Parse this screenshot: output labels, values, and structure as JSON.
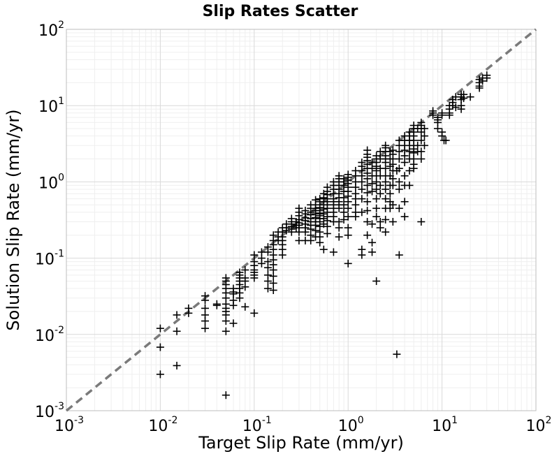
{
  "chart_data": {
    "type": "scatter",
    "title": "Slip Rates Scatter",
    "xlabel": "Target Slip Rate (mm/yr)",
    "ylabel": "Solution Slip Rate (mm/yr)",
    "xscale": "log",
    "yscale": "log",
    "xlim": [
      0.001,
      100
    ],
    "ylim": [
      0.001,
      100
    ],
    "tick_base": "10",
    "x_tick_exponents": [
      "-3",
      "-2",
      "-1",
      "0",
      "1",
      "2"
    ],
    "y_tick_exponents": [
      "-3",
      "-2",
      "-1",
      "0",
      "1",
      "2"
    ],
    "grid": true,
    "marker": "plus",
    "reference_line": {
      "style": "dashed",
      "color": "#7a7a7a",
      "from": [
        0.001,
        0.001
      ],
      "to": [
        100,
        100
      ]
    },
    "colors": {
      "markers": "#000000",
      "reference_line": "#7a7a7a",
      "grid_major": "#d9d9d9",
      "grid_minor": "#efefef"
    },
    "points": [
      [
        0.01,
        0.012
      ],
      [
        0.01,
        0.0068
      ],
      [
        0.01,
        0.003
      ],
      [
        0.015,
        0.018
      ],
      [
        0.015,
        0.011
      ],
      [
        0.015,
        0.0039
      ],
      [
        0.02,
        0.022
      ],
      [
        0.02,
        0.019
      ],
      [
        0.03,
        0.032
      ],
      [
        0.03,
        0.028
      ],
      [
        0.03,
        0.022
      ],
      [
        0.03,
        0.018
      ],
      [
        0.03,
        0.015
      ],
      [
        0.03,
        0.012
      ],
      [
        0.04,
        0.025
      ],
      [
        0.04,
        0.024
      ],
      [
        0.05,
        0.055
      ],
      [
        0.05,
        0.05
      ],
      [
        0.05,
        0.045
      ],
      [
        0.05,
        0.04
      ],
      [
        0.05,
        0.035
      ],
      [
        0.05,
        0.03
      ],
      [
        0.05,
        0.025
      ],
      [
        0.05,
        0.022
      ],
      [
        0.05,
        0.02
      ],
      [
        0.05,
        0.018
      ],
      [
        0.05,
        0.015
      ],
      [
        0.05,
        0.011
      ],
      [
        0.05,
        0.0016
      ],
      [
        0.06,
        0.04
      ],
      [
        0.06,
        0.036
      ],
      [
        0.06,
        0.034
      ],
      [
        0.06,
        0.028
      ],
      [
        0.06,
        0.024
      ],
      [
        0.06,
        0.014
      ],
      [
        0.07,
        0.065
      ],
      [
        0.07,
        0.06
      ],
      [
        0.07,
        0.055
      ],
      [
        0.07,
        0.05
      ],
      [
        0.07,
        0.045
      ],
      [
        0.07,
        0.04
      ],
      [
        0.07,
        0.035
      ],
      [
        0.07,
        0.03
      ],
      [
        0.08,
        0.07
      ],
      [
        0.08,
        0.055
      ],
      [
        0.08,
        0.05
      ],
      [
        0.08,
        0.042
      ],
      [
        0.08,
        0.023
      ],
      [
        0.1,
        0.11
      ],
      [
        0.1,
        0.09
      ],
      [
        0.1,
        0.08
      ],
      [
        0.1,
        0.07
      ],
      [
        0.1,
        0.065
      ],
      [
        0.1,
        0.06
      ],
      [
        0.1,
        0.055
      ],
      [
        0.1,
        0.019
      ],
      [
        0.12,
        0.12
      ],
      [
        0.12,
        0.1
      ],
      [
        0.12,
        0.085
      ],
      [
        0.14,
        0.14
      ],
      [
        0.14,
        0.12
      ],
      [
        0.14,
        0.09
      ],
      [
        0.14,
        0.075
      ],
      [
        0.14,
        0.06
      ],
      [
        0.14,
        0.05
      ],
      [
        0.14,
        0.04
      ],
      [
        0.16,
        0.2
      ],
      [
        0.16,
        0.17
      ],
      [
        0.16,
        0.15
      ],
      [
        0.16,
        0.13
      ],
      [
        0.16,
        0.11
      ],
      [
        0.16,
        0.095
      ],
      [
        0.16,
        0.082
      ],
      [
        0.16,
        0.07
      ],
      [
        0.16,
        0.058
      ],
      [
        0.16,
        0.047
      ],
      [
        0.16,
        0.038
      ],
      [
        0.18,
        0.22
      ],
      [
        0.18,
        0.19
      ],
      [
        0.18,
        0.17
      ],
      [
        0.2,
        0.25
      ],
      [
        0.2,
        0.22
      ],
      [
        0.2,
        0.19
      ],
      [
        0.2,
        0.17
      ],
      [
        0.2,
        0.15
      ],
      [
        0.2,
        0.13
      ],
      [
        0.2,
        0.11
      ],
      [
        0.22,
        0.28
      ],
      [
        0.22,
        0.25
      ],
      [
        0.22,
        0.23
      ],
      [
        0.25,
        0.33
      ],
      [
        0.25,
        0.3
      ],
      [
        0.25,
        0.28
      ],
      [
        0.25,
        0.26
      ],
      [
        0.25,
        0.24
      ],
      [
        0.25,
        0.22
      ],
      [
        0.28,
        0.3
      ],
      [
        0.28,
        0.27
      ],
      [
        0.28,
        0.25
      ],
      [
        0.3,
        0.45
      ],
      [
        0.3,
        0.4
      ],
      [
        0.3,
        0.36
      ],
      [
        0.3,
        0.32
      ],
      [
        0.3,
        0.29
      ],
      [
        0.3,
        0.27
      ],
      [
        0.3,
        0.25
      ],
      [
        0.3,
        0.22
      ],
      [
        0.3,
        0.17
      ],
      [
        0.35,
        0.42
      ],
      [
        0.35,
        0.38
      ],
      [
        0.35,
        0.34
      ],
      [
        0.35,
        0.31
      ],
      [
        0.35,
        0.28
      ],
      [
        0.35,
        0.25
      ],
      [
        0.35,
        0.22
      ],
      [
        0.35,
        0.17
      ],
      [
        0.4,
        0.5
      ],
      [
        0.4,
        0.45
      ],
      [
        0.4,
        0.4
      ],
      [
        0.4,
        0.37
      ],
      [
        0.4,
        0.33
      ],
      [
        0.4,
        0.3
      ],
      [
        0.4,
        0.27
      ],
      [
        0.4,
        0.24
      ],
      [
        0.4,
        0.2
      ],
      [
        0.4,
        0.17
      ],
      [
        0.45,
        0.58
      ],
      [
        0.45,
        0.5
      ],
      [
        0.45,
        0.45
      ],
      [
        0.45,
        0.42
      ],
      [
        0.45,
        0.38
      ],
      [
        0.45,
        0.34
      ],
      [
        0.45,
        0.3
      ],
      [
        0.45,
        0.27
      ],
      [
        0.45,
        0.23
      ],
      [
        0.45,
        0.19
      ],
      [
        0.5,
        0.6
      ],
      [
        0.5,
        0.55
      ],
      [
        0.5,
        0.5
      ],
      [
        0.5,
        0.46
      ],
      [
        0.5,
        0.42
      ],
      [
        0.5,
        0.39
      ],
      [
        0.5,
        0.36
      ],
      [
        0.5,
        0.33
      ],
      [
        0.5,
        0.3
      ],
      [
        0.5,
        0.26
      ],
      [
        0.5,
        0.22
      ],
      [
        0.5,
        0.19
      ],
      [
        0.5,
        0.16
      ],
      [
        0.55,
        0.7
      ],
      [
        0.55,
        0.62
      ],
      [
        0.55,
        0.55
      ],
      [
        0.55,
        0.5
      ],
      [
        0.55,
        0.44
      ],
      [
        0.55,
        0.38
      ],
      [
        0.55,
        0.33
      ],
      [
        0.55,
        0.28
      ],
      [
        0.55,
        0.13
      ],
      [
        0.6,
        0.85
      ],
      [
        0.6,
        0.75
      ],
      [
        0.6,
        0.68
      ],
      [
        0.6,
        0.6
      ],
      [
        0.6,
        0.55
      ],
      [
        0.6,
        0.5
      ],
      [
        0.6,
        0.45
      ],
      [
        0.6,
        0.4
      ],
      [
        0.6,
        0.35
      ],
      [
        0.6,
        0.31
      ],
      [
        0.6,
        0.26
      ],
      [
        0.6,
        0.21
      ],
      [
        0.7,
        1.0
      ],
      [
        0.7,
        0.9
      ],
      [
        0.7,
        0.8
      ],
      [
        0.7,
        0.7
      ],
      [
        0.7,
        0.6
      ],
      [
        0.7,
        0.55
      ],
      [
        0.7,
        0.5
      ],
      [
        0.7,
        0.45
      ],
      [
        0.7,
        0.4
      ],
      [
        0.7,
        0.35
      ],
      [
        0.7,
        0.3
      ],
      [
        0.7,
        0.12
      ],
      [
        0.8,
        1.2
      ],
      [
        0.8,
        1.1
      ],
      [
        0.8,
        1.0
      ],
      [
        0.8,
        0.9
      ],
      [
        0.8,
        0.8
      ],
      [
        0.8,
        0.7
      ],
      [
        0.8,
        0.62
      ],
      [
        0.8,
        0.55
      ],
      [
        0.8,
        0.5
      ],
      [
        0.8,
        0.45
      ],
      [
        0.8,
        0.3
      ],
      [
        0.8,
        0.25
      ],
      [
        0.8,
        0.19
      ],
      [
        0.9,
        1.1
      ],
      [
        0.9,
        1.0
      ],
      [
        0.9,
        0.9
      ],
      [
        0.9,
        0.75
      ],
      [
        0.9,
        0.62
      ],
      [
        0.9,
        0.5
      ],
      [
        0.9,
        0.4
      ],
      [
        0.9,
        0.32
      ],
      [
        1.0,
        1.25
      ],
      [
        1.0,
        1.15
      ],
      [
        1.0,
        1.05
      ],
      [
        1.0,
        0.95
      ],
      [
        1.0,
        0.85
      ],
      [
        1.0,
        0.75
      ],
      [
        1.0,
        0.65
      ],
      [
        1.0,
        0.55
      ],
      [
        1.0,
        0.45
      ],
      [
        1.0,
        0.35
      ],
      [
        1.0,
        0.25
      ],
      [
        1.0,
        0.2
      ],
      [
        1.0,
        0.085
      ],
      [
        1.2,
        1.4
      ],
      [
        1.2,
        1.2
      ],
      [
        1.2,
        1.0
      ],
      [
        1.2,
        0.85
      ],
      [
        1.2,
        0.7
      ],
      [
        1.2,
        0.6
      ],
      [
        1.2,
        0.5
      ],
      [
        1.2,
        0.4
      ],
      [
        1.2,
        0.35
      ],
      [
        1.4,
        1.8
      ],
      [
        1.4,
        1.6
      ],
      [
        1.4,
        1.4
      ],
      [
        1.4,
        1.2
      ],
      [
        1.4,
        1.0
      ],
      [
        1.4,
        0.8
      ],
      [
        1.4,
        0.6
      ],
      [
        1.4,
        0.4
      ],
      [
        1.4,
        0.13
      ],
      [
        1.4,
        0.11
      ],
      [
        1.6,
        2.6
      ],
      [
        1.6,
        2.3
      ],
      [
        1.6,
        2.1
      ],
      [
        1.6,
        1.9
      ],
      [
        1.6,
        1.7
      ],
      [
        1.6,
        1.5
      ],
      [
        1.6,
        1.3
      ],
      [
        1.6,
        1.1
      ],
      [
        1.6,
        0.9
      ],
      [
        1.6,
        0.72
      ],
      [
        1.6,
        0.55
      ],
      [
        1.6,
        0.42
      ],
      [
        1.6,
        0.3
      ],
      [
        1.6,
        0.2
      ],
      [
        1.8,
        1.8
      ],
      [
        1.8,
        1.5
      ],
      [
        1.8,
        1.2
      ],
      [
        1.8,
        0.95
      ],
      [
        1.8,
        0.75
      ],
      [
        1.8,
        0.28
      ],
      [
        1.8,
        0.16
      ],
      [
        1.8,
        0.12
      ],
      [
        2.0,
        2.2
      ],
      [
        2.0,
        2.0
      ],
      [
        2.0,
        1.8
      ],
      [
        2.0,
        1.6
      ],
      [
        2.0,
        1.4
      ],
      [
        2.0,
        1.2
      ],
      [
        2.0,
        1.0
      ],
      [
        2.0,
        0.8
      ],
      [
        2.0,
        0.6
      ],
      [
        2.0,
        0.45
      ],
      [
        2.0,
        0.35
      ],
      [
        2.0,
        0.05
      ],
      [
        2.2,
        2.5
      ],
      [
        2.2,
        2.0
      ],
      [
        2.2,
        1.5
      ],
      [
        2.2,
        1.2
      ],
      [
        2.2,
        0.9
      ],
      [
        2.2,
        0.7
      ],
      [
        2.2,
        0.3
      ],
      [
        2.2,
        0.25
      ],
      [
        2.5,
        3.0
      ],
      [
        2.5,
        2.8
      ],
      [
        2.5,
        2.5
      ],
      [
        2.5,
        2.2
      ],
      [
        2.5,
        2.0
      ],
      [
        2.5,
        1.8
      ],
      [
        2.5,
        1.5
      ],
      [
        2.5,
        1.2
      ],
      [
        2.5,
        1.0
      ],
      [
        2.5,
        0.8
      ],
      [
        2.5,
        0.6
      ],
      [
        2.5,
        0.45
      ],
      [
        2.5,
        0.32
      ],
      [
        2.5,
        0.22
      ],
      [
        2.8,
        2.5
      ],
      [
        2.8,
        2.0
      ],
      [
        2.8,
        1.6
      ],
      [
        2.8,
        1.2
      ],
      [
        2.8,
        0.9
      ],
      [
        2.8,
        0.7
      ],
      [
        2.8,
        0.55
      ],
      [
        2.8,
        0.45
      ],
      [
        3.0,
        2.6
      ],
      [
        3.0,
        2.3
      ],
      [
        3.0,
        2.0
      ],
      [
        3.0,
        1.7
      ],
      [
        3.0,
        1.4
      ],
      [
        3.0,
        1.1
      ],
      [
        3.0,
        0.9
      ],
      [
        3.0,
        0.5
      ],
      [
        3.0,
        0.3
      ],
      [
        3.3,
        1.4
      ],
      [
        3.3,
        0.0055
      ],
      [
        3.5,
        3.5
      ],
      [
        3.5,
        3.0
      ],
      [
        3.5,
        2.5
      ],
      [
        3.5,
        2.0
      ],
      [
        3.5,
        1.5
      ],
      [
        3.5,
        1.0
      ],
      [
        3.5,
        0.8
      ],
      [
        3.5,
        0.45
      ],
      [
        3.5,
        0.11
      ],
      [
        4.0,
        4.0
      ],
      [
        4.0,
        3.5
      ],
      [
        4.0,
        3.0
      ],
      [
        4.0,
        2.6
      ],
      [
        4.0,
        2.2
      ],
      [
        4.0,
        1.8
      ],
      [
        4.0,
        1.2
      ],
      [
        4.0,
        0.9
      ],
      [
        4.0,
        0.55
      ],
      [
        4.0,
        0.35
      ],
      [
        4.5,
        4.5
      ],
      [
        4.5,
        4.0
      ],
      [
        4.5,
        3.5
      ],
      [
        4.5,
        3.0
      ],
      [
        4.5,
        2.5
      ],
      [
        4.5,
        2.0
      ],
      [
        4.5,
        1.4
      ],
      [
        4.5,
        0.9
      ],
      [
        5.0,
        5.5
      ],
      [
        5.0,
        5.0
      ],
      [
        5.0,
        4.5
      ],
      [
        5.0,
        4.0
      ],
      [
        5.0,
        3.5
      ],
      [
        5.0,
        3.0
      ],
      [
        5.0,
        2.7
      ],
      [
        5.0,
        2.4
      ],
      [
        5.0,
        2.0
      ],
      [
        5.0,
        1.7
      ],
      [
        5.0,
        1.5
      ],
      [
        5.5,
        5.0
      ],
      [
        5.5,
        3.0
      ],
      [
        5.5,
        2.5
      ],
      [
        6.0,
        6.0
      ],
      [
        6.0,
        5.5
      ],
      [
        6.0,
        5.0
      ],
      [
        6.0,
        4.5
      ],
      [
        6.0,
        3.5
      ],
      [
        6.0,
        2.5
      ],
      [
        6.0,
        2.0
      ],
      [
        6.0,
        0.3
      ],
      [
        6.5,
        5.0
      ],
      [
        6.5,
        4.0
      ],
      [
        6.5,
        3.0
      ],
      [
        8.0,
        8.5
      ],
      [
        8.0,
        8.0
      ],
      [
        8.0,
        7.5
      ],
      [
        9.0,
        7.0
      ],
      [
        9.0,
        6.5
      ],
      [
        9.0,
        6.0
      ],
      [
        9.0,
        5.0
      ],
      [
        10.0,
        8.0
      ],
      [
        10.0,
        7.5
      ],
      [
        10.0,
        4.5
      ],
      [
        10.0,
        4.0
      ],
      [
        10.5,
        3.5
      ],
      [
        11.0,
        3.5
      ],
      [
        12.0,
        10.0
      ],
      [
        12.0,
        9.0
      ],
      [
        12.0,
        8.0
      ],
      [
        12.0,
        7.5
      ],
      [
        13.0,
        12.0
      ],
      [
        13.0,
        11.0
      ],
      [
        13.0,
        10.0
      ],
      [
        14.0,
        13.0
      ],
      [
        14.0,
        9.5
      ],
      [
        16.0,
        14.0
      ],
      [
        16.0,
        13.0
      ],
      [
        16.0,
        12.0
      ],
      [
        16.0,
        10.0
      ],
      [
        16.0,
        9.0
      ],
      [
        17.0,
        14.0
      ],
      [
        17.0,
        12.5
      ],
      [
        20.0,
        13.0
      ],
      [
        25.0,
        22.0
      ],
      [
        25.0,
        20.0
      ],
      [
        25.0,
        18.0
      ],
      [
        25.0,
        17.0
      ],
      [
        27.0,
        23.0
      ],
      [
        27.0,
        21.0
      ],
      [
        30.0,
        25.0
      ],
      [
        30.0,
        23.0
      ]
    ]
  }
}
